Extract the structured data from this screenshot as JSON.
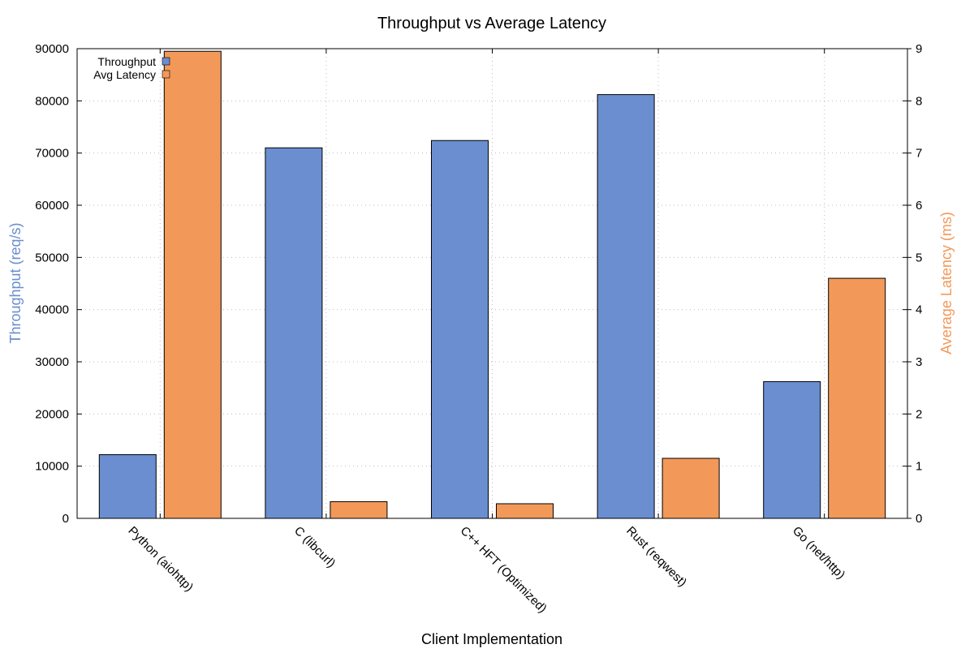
{
  "chart_data": {
    "type": "bar",
    "title": "Throughput vs Average Latency",
    "xlabel": "Client Implementation",
    "ylabel": "Throughput (req/s)",
    "y2label": "Average Latency (ms)",
    "categories": [
      "Python (aiohttp)",
      "C (libcurl)",
      "C++ HFT (Optimized)",
      "Rust (reqwest)",
      "Go (net/http)"
    ],
    "ylim": [
      0,
      90000
    ],
    "y2lim": [
      0,
      9
    ],
    "yticks": [
      "0",
      "10000",
      "20000",
      "30000",
      "40000",
      "50000",
      "60000",
      "70000",
      "80000",
      "90000"
    ],
    "y2ticks": [
      "0",
      "1",
      "2",
      "3",
      "4",
      "5",
      "6",
      "7",
      "8",
      "9"
    ],
    "grid": true,
    "legend_position": "top-left",
    "series": [
      {
        "name": "Throughput",
        "axis": "left",
        "color": "#6a8ecf",
        "values": [
          12200,
          71000,
          72400,
          81200,
          26200
        ]
      },
      {
        "name": "Avg Latency",
        "axis": "right",
        "color": "#f2995a",
        "values": [
          8.95,
          0.32,
          0.28,
          1.15,
          4.6
        ]
      }
    ]
  }
}
